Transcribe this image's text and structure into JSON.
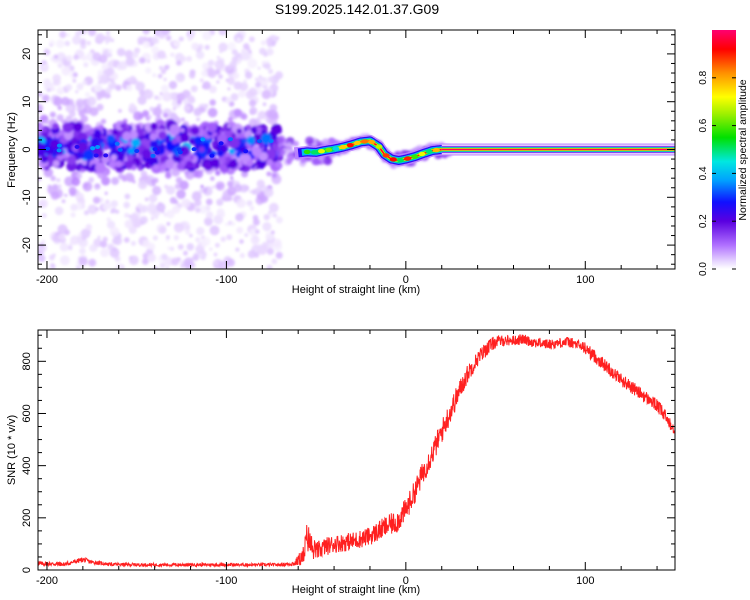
{
  "title": "S199.2025.142.01.37.G09",
  "chart_data": [
    {
      "type": "heatmap",
      "title": "S199.2025.142.01.37.G09",
      "xlabel": "Height of straight line (km)",
      "ylabel": "Frequency (Hz)",
      "xlim": [
        -205,
        150
      ],
      "ylim": [
        -25,
        25
      ],
      "xticks": [
        -200,
        -100,
        0,
        100
      ],
      "xtick_labels": [
        "-200",
        "-100",
        "0",
        "100"
      ],
      "yticks": [
        -20,
        -10,
        0,
        10,
        20
      ],
      "ytick_labels": [
        "-20",
        "-10",
        "0",
        "10",
        "20"
      ],
      "ridge": {
        "x": [
          -205,
          -190,
          -175,
          -160,
          -145,
          -130,
          -115,
          -100,
          -85,
          -70,
          -62,
          -55,
          -50,
          -45,
          -40,
          -35,
          -30,
          -25,
          -20,
          -15,
          -12,
          -8,
          -4,
          0,
          5,
          10,
          15,
          20,
          25,
          50,
          100,
          150
        ],
        "y": [
          0.5,
          0.8,
          0.2,
          0.6,
          0.4,
          0.9,
          0.3,
          0.5,
          0.7,
          0.4,
          -0.8,
          -0.5,
          -0.6,
          -0.2,
          0.1,
          0.5,
          1.0,
          1.6,
          1.8,
          0.6,
          -1.0,
          -2.0,
          -2.3,
          -2.0,
          -1.5,
          -0.8,
          -0.2,
          0.0,
          0.0,
          0.0,
          0.0,
          0.0
        ],
        "amplitude_note": "broad scatter (low amplitude) for x < -70 km; narrow high-amplitude line near 0 Hz for x > 15 km"
      },
      "scatter_region": {
        "x_range": [
          -205,
          -70
        ],
        "freq_range": [
          -25,
          25
        ]
      },
      "colorbar": {
        "label": "Normalized spectral amplitude",
        "range": [
          0.0,
          1.0
        ],
        "ticks": [
          0.0,
          0.2,
          0.4,
          0.6,
          0.8
        ],
        "tick_labels": [
          "0.0",
          "0.2",
          "0.4",
          "0.6",
          "0.8"
        ],
        "colors": [
          "#ffffff",
          "#e0c8ff",
          "#b070ff",
          "#5a00e0",
          "#1010ff",
          "#00a0ff",
          "#00e8e0",
          "#00e000",
          "#a0f000",
          "#ffff00",
          "#ff9000",
          "#ff0000",
          "#ff0070"
        ]
      }
    },
    {
      "type": "line",
      "xlabel": "Height of straight line (km)",
      "ylabel": "SNR (10 * v/v)",
      "xlim": [
        -205,
        150
      ],
      "ylim": [
        0,
        920
      ],
      "xticks": [
        -200,
        -100,
        0,
        100
      ],
      "xtick_labels": [
        "-200",
        "-100",
        "0",
        "100"
      ],
      "yticks": [
        0,
        200,
        400,
        600,
        800
      ],
      "ytick_labels": [
        "0",
        "200",
        "400",
        "600",
        "800"
      ],
      "series": [
        {
          "name": "SNR",
          "color": "#ff2020",
          "x": [
            -205,
            -190,
            -180,
            -175,
            -165,
            -150,
            -130,
            -110,
            -90,
            -70,
            -62,
            -57,
            -55,
            -52,
            -50,
            -45,
            -40,
            -35,
            -30,
            -25,
            -20,
            -15,
            -10,
            -5,
            0,
            5,
            10,
            15,
            20,
            25,
            30,
            35,
            40,
            45,
            50,
            55,
            60,
            65,
            70,
            75,
            80,
            85,
            90,
            95,
            100,
            110,
            120,
            130,
            140,
            150
          ],
          "values": [
            25,
            22,
            40,
            30,
            22,
            20,
            20,
            20,
            20,
            20,
            25,
            55,
            130,
            80,
            70,
            90,
            100,
            105,
            110,
            120,
            130,
            150,
            170,
            185,
            230,
            300,
            380,
            450,
            530,
            610,
            690,
            760,
            810,
            850,
            875,
            880,
            880,
            885,
            875,
            870,
            865,
            870,
            875,
            865,
            850,
            790,
            730,
            680,
            630,
            540
          ],
          "noise_amplitude": [
            8,
            8,
            10,
            8,
            6,
            6,
            6,
            6,
            6,
            6,
            10,
            40,
            60,
            40,
            35,
            35,
            35,
            35,
            35,
            35,
            35,
            40,
            40,
            45,
            45,
            45,
            45,
            45,
            45,
            45,
            40,
            35,
            30,
            30,
            25,
            20,
            20,
            20,
            20,
            20,
            20,
            20,
            20,
            20,
            25,
            25,
            25,
            25,
            25,
            30
          ]
        }
      ]
    }
  ]
}
